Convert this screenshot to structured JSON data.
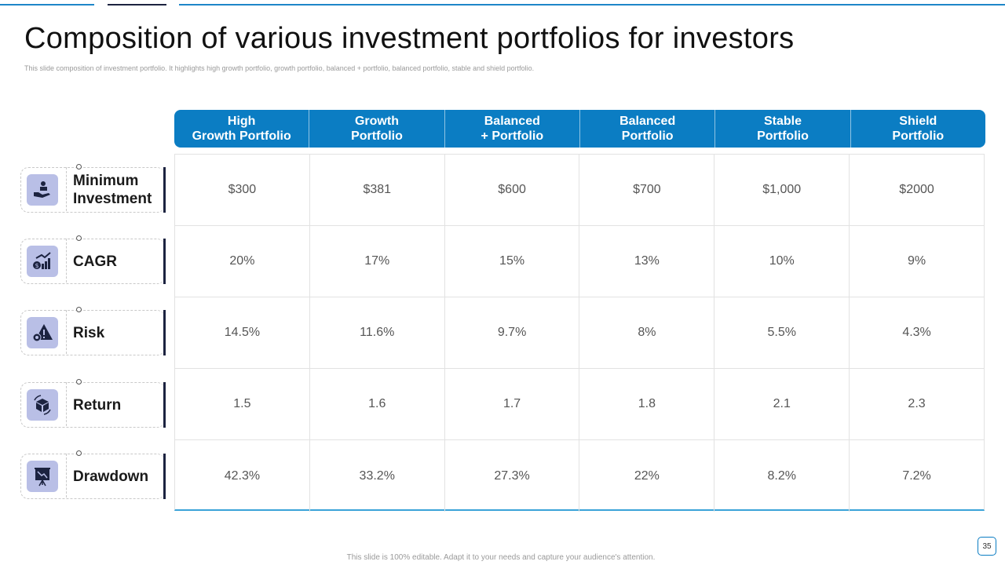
{
  "title": "Composition of various investment portfolios for investors",
  "subtitle": "This slide composition of investment portfolio. It highlights high growth portfolio, growth portfolio, balanced + portfolio, balanced portfolio, stable and shield portfolio.",
  "columns": [
    "High\nGrowth Portfolio",
    "Growth\nPortfolio",
    "Balanced\n+ Portfolio",
    "Balanced\nPortfolio",
    "Stable\nPortfolio",
    "Shield\nPortfolio"
  ],
  "rows": [
    {
      "label": "Minimum\nInvestment",
      "icon": "money-hand-icon",
      "values": [
        "$300",
        "$381",
        "$600",
        "$700",
        "$1,000",
        "$2000"
      ]
    },
    {
      "label": "CAGR",
      "icon": "growth-chart-icon",
      "values": [
        "20%",
        "17%",
        "15%",
        "13%",
        "10%",
        "9%"
      ]
    },
    {
      "label": "Risk",
      "icon": "gear-warning-icon",
      "values": [
        "14.5%",
        "11.6%",
        "9.7%",
        "8%",
        "5.5%",
        "4.3%"
      ]
    },
    {
      "label": "Return",
      "icon": "box-return-icon",
      "values": [
        "1.5",
        "1.6",
        "1.7",
        "1.8",
        "2.1",
        "2.3"
      ]
    },
    {
      "label": "Drawdown",
      "icon": "presentation-board-icon",
      "values": [
        "42.3%",
        "33.2%",
        "27.3%",
        "22%",
        "8.2%",
        "7.2%"
      ]
    }
  ],
  "footer": "This slide is 100% editable. Adapt it to your needs and capture your audience's attention.",
  "page_number": "35",
  "colors": {
    "accent": "#0b7dc3",
    "dark": "#1c2340",
    "icon_bg": "#b9bfe6"
  }
}
